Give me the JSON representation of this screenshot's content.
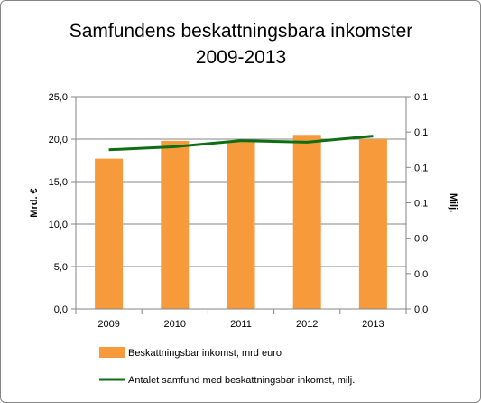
{
  "chart_data": {
    "type": "bar",
    "title_lines": [
      "Samfundens beskattningsbara inkomster",
      "2009-2013"
    ],
    "categories": [
      "2009",
      "2010",
      "2011",
      "2012",
      "2013"
    ],
    "series": [
      {
        "name": "Beskattningsbar inkomst, mrd euro",
        "type": "bar",
        "axis": "left",
        "color": "#F79A3B",
        "values": [
          17.7,
          19.8,
          19.8,
          20.5,
          20.0
        ]
      },
      {
        "name": "Antalet samfund med beskattningsbar inkomst, milj.",
        "type": "line",
        "axis": "right",
        "color": "#0E6E14",
        "values": [
          0.105,
          0.107,
          0.111,
          0.11,
          0.114
        ]
      }
    ],
    "ylabel": "Mrd. €",
    "y2label": "Milj.",
    "ylim": [
      0,
      25
    ],
    "y_ticks": [
      "0,0",
      "5,0",
      "10,0",
      "15,0",
      "20,0",
      "25,0"
    ],
    "y2lim": [
      0.0,
      0.14
    ],
    "y2_ticks": [
      "0,0",
      "0,0",
      "0,0",
      "0,1",
      "0,1",
      "0,1",
      "0,1"
    ],
    "grid": "horizontal",
    "legend_position": "bottom"
  }
}
